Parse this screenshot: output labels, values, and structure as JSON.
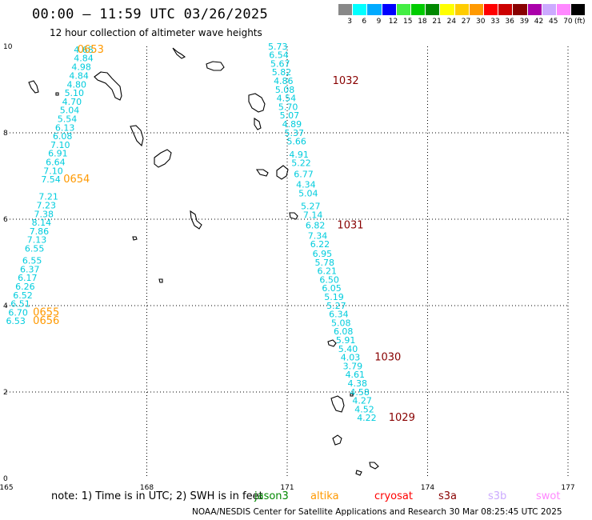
{
  "header": {
    "title": "00:00 – 11:59 UTC 03/26/2025",
    "subtitle": "12 hour collection of altimeter wave heights"
  },
  "legend": {
    "unit": "(ft)",
    "bins": [
      {
        "label": "3",
        "color": "#888888"
      },
      {
        "label": "6",
        "color": "#00ffff"
      },
      {
        "label": "9",
        "color": "#00aaff"
      },
      {
        "label": "12",
        "color": "#0000ff"
      },
      {
        "label": "15",
        "color": "#44ee44"
      },
      {
        "label": "18",
        "color": "#00cc00"
      },
      {
        "label": "21",
        "color": "#008800"
      },
      {
        "label": "24",
        "color": "#ffff00"
      },
      {
        "label": "27",
        "color": "#ffcc00"
      },
      {
        "label": "30",
        "color": "#ff9900"
      },
      {
        "label": "33",
        "color": "#ff0000"
      },
      {
        "label": "36",
        "color": "#cc0000"
      },
      {
        "label": "39",
        "color": "#880000"
      },
      {
        "label": "42",
        "color": "#aa00aa"
      },
      {
        "label": "45",
        "color": "#ccaaff"
      },
      {
        "label": "70",
        "color": "#ff88ff"
      },
      {
        "label": "",
        "color": "#000000"
      }
    ]
  },
  "footer": {
    "note": "note:  1) Time is in UTC;  2) SWH is in feet",
    "credit": "NOAA/NESDIS Center for Satellite Applications and Research    30 Mar 08:25:45 UTC 2025",
    "satellites": [
      {
        "name": "jason3",
        "color": "#008800"
      },
      {
        "name": "altika",
        "color": "#ff9900"
      },
      {
        "name": "cryosat",
        "color": "#ff0000"
      },
      {
        "name": "s3a",
        "color": "#880000"
      },
      {
        "name": "s3b",
        "color": "#ccaaff"
      },
      {
        "name": "swot",
        "color": "#ff88ff"
      }
    ]
  },
  "chart_data": {
    "type": "scatter",
    "xlim": [
      165,
      177
    ],
    "ylim": [
      0,
      10
    ],
    "x_ticks": [
      "165",
      "168",
      "171",
      "174",
      "177"
    ],
    "y_ticks": [
      "0",
      "2",
      "4",
      "6",
      "8",
      "10"
    ],
    "grid": true,
    "colors": {
      "value": "#00ccdd",
      "altika_time": "#ff9900",
      "s3a_time": "#880000"
    },
    "track_west": [
      {
        "lon": 166.65,
        "lat": 9.85,
        "v": "4.68"
      },
      {
        "lon": 166.65,
        "lat": 9.66,
        "v": "4.84"
      },
      {
        "lon": 166.6,
        "lat": 9.45,
        "v": "4.98"
      },
      {
        "lon": 166.55,
        "lat": 9.25,
        "v": "4.84"
      },
      {
        "lon": 166.5,
        "lat": 9.05,
        "v": "4.80"
      },
      {
        "lon": 166.45,
        "lat": 8.85,
        "v": "5.10"
      },
      {
        "lon": 166.4,
        "lat": 8.65,
        "v": "4.70"
      },
      {
        "lon": 166.35,
        "lat": 8.45,
        "v": "5.04"
      },
      {
        "lon": 166.3,
        "lat": 8.25,
        "v": "5.54"
      },
      {
        "lon": 166.25,
        "lat": 8.05,
        "v": "6.13"
      },
      {
        "lon": 166.2,
        "lat": 7.85,
        "v": "6.08"
      },
      {
        "lon": 166.15,
        "lat": 7.65,
        "v": "7.10"
      },
      {
        "lon": 166.1,
        "lat": 7.45,
        "v": "6.91"
      },
      {
        "lon": 166.05,
        "lat": 7.25,
        "v": "6.64"
      },
      {
        "lon": 166.0,
        "lat": 7.05,
        "v": "7.10"
      },
      {
        "lon": 165.95,
        "lat": 6.85,
        "v": "7.54"
      },
      {
        "lon": 165.9,
        "lat": 6.45,
        "v": "7.21"
      },
      {
        "lon": 165.85,
        "lat": 6.25,
        "v": "7.23"
      },
      {
        "lon": 165.8,
        "lat": 6.05,
        "v": "7.38"
      },
      {
        "lon": 165.75,
        "lat": 5.85,
        "v": "8.14"
      },
      {
        "lon": 165.7,
        "lat": 5.65,
        "v": "7.86"
      },
      {
        "lon": 165.65,
        "lat": 5.45,
        "v": "7.13"
      },
      {
        "lon": 165.6,
        "lat": 5.25,
        "v": "6.55"
      },
      {
        "lon": 165.55,
        "lat": 4.97,
        "v": "6.55"
      },
      {
        "lon": 165.5,
        "lat": 4.77,
        "v": "6.37"
      },
      {
        "lon": 165.45,
        "lat": 4.57,
        "v": "6.17"
      },
      {
        "lon": 165.4,
        "lat": 4.37,
        "v": "6.26"
      },
      {
        "lon": 165.35,
        "lat": 4.17,
        "v": "6.52"
      },
      {
        "lon": 165.3,
        "lat": 3.97,
        "v": "6.51"
      },
      {
        "lon": 165.25,
        "lat": 3.77,
        "v": "6.70"
      },
      {
        "lon": 165.2,
        "lat": 3.57,
        "v": "6.53"
      }
    ],
    "track_east": [
      {
        "lon": 170.8,
        "lat": 9.93,
        "v": "5.73"
      },
      {
        "lon": 170.82,
        "lat": 9.73,
        "v": "6.54"
      },
      {
        "lon": 170.85,
        "lat": 9.53,
        "v": "5.67"
      },
      {
        "lon": 170.88,
        "lat": 9.33,
        "v": "5.82"
      },
      {
        "lon": 170.92,
        "lat": 9.13,
        "v": "4.86"
      },
      {
        "lon": 170.95,
        "lat": 8.93,
        "v": "5.08"
      },
      {
        "lon": 170.98,
        "lat": 8.73,
        "v": "4.54"
      },
      {
        "lon": 171.02,
        "lat": 8.53,
        "v": "5.70"
      },
      {
        "lon": 171.05,
        "lat": 8.33,
        "v": "5.07"
      },
      {
        "lon": 171.1,
        "lat": 8.13,
        "v": "4.89"
      },
      {
        "lon": 171.15,
        "lat": 7.93,
        "v": "5.37"
      },
      {
        "lon": 171.2,
        "lat": 7.73,
        "v": "5.66"
      },
      {
        "lon": 171.25,
        "lat": 7.43,
        "v": "4.91"
      },
      {
        "lon": 171.3,
        "lat": 7.23,
        "v": "5.22"
      },
      {
        "lon": 171.35,
        "lat": 6.97,
        "v": "6.77"
      },
      {
        "lon": 171.4,
        "lat": 6.73,
        "v": "4.34"
      },
      {
        "lon": 171.45,
        "lat": 6.53,
        "v": "5.04"
      },
      {
        "lon": 171.5,
        "lat": 6.23,
        "v": "5.27"
      },
      {
        "lon": 171.55,
        "lat": 6.03,
        "v": "7.14"
      },
      {
        "lon": 171.6,
        "lat": 5.79,
        "v": "6.82"
      },
      {
        "lon": 171.65,
        "lat": 5.55,
        "v": "7.34"
      },
      {
        "lon": 171.7,
        "lat": 5.35,
        "v": "6.22"
      },
      {
        "lon": 171.75,
        "lat": 5.13,
        "v": "6.95"
      },
      {
        "lon": 171.8,
        "lat": 4.93,
        "v": "5.78"
      },
      {
        "lon": 171.85,
        "lat": 4.73,
        "v": "6.21"
      },
      {
        "lon": 171.9,
        "lat": 4.53,
        "v": "6.50"
      },
      {
        "lon": 171.95,
        "lat": 4.33,
        "v": "6.05"
      },
      {
        "lon": 172.0,
        "lat": 4.13,
        "v": "5.19"
      },
      {
        "lon": 172.05,
        "lat": 3.93,
        "v": "5.27"
      },
      {
        "lon": 172.1,
        "lat": 3.73,
        "v": "6.34"
      },
      {
        "lon": 172.15,
        "lat": 3.53,
        "v": "5.08"
      },
      {
        "lon": 172.2,
        "lat": 3.33,
        "v": "6.08"
      },
      {
        "lon": 172.25,
        "lat": 3.13,
        "v": "5.91"
      },
      {
        "lon": 172.3,
        "lat": 2.93,
        "v": "5.40"
      },
      {
        "lon": 172.35,
        "lat": 2.73,
        "v": "4.03"
      },
      {
        "lon": 172.4,
        "lat": 2.53,
        "v": "3.79"
      },
      {
        "lon": 172.45,
        "lat": 2.33,
        "v": "4.61"
      },
      {
        "lon": 172.5,
        "lat": 2.13,
        "v": "4.38"
      },
      {
        "lon": 172.55,
        "lat": 1.93,
        "v": "4.58"
      },
      {
        "lon": 172.6,
        "lat": 1.73,
        "v": "4.27"
      },
      {
        "lon": 172.65,
        "lat": 1.53,
        "v": "4.52"
      },
      {
        "lon": 172.7,
        "lat": 1.33,
        "v": "4.22"
      }
    ],
    "time_labels": [
      {
        "lon": 166.8,
        "lat": 9.85,
        "t": "0653",
        "sat": "altika"
      },
      {
        "lon": 166.5,
        "lat": 6.85,
        "t": "0654",
        "sat": "altika"
      },
      {
        "lon": 165.85,
        "lat": 3.77,
        "t": "0655",
        "sat": "altika"
      },
      {
        "lon": 165.85,
        "lat": 3.57,
        "t": "0656",
        "sat": "altika"
      },
      {
        "lon": 172.25,
        "lat": 9.13,
        "t": "1032",
        "sat": "s3a"
      },
      {
        "lon": 172.35,
        "lat": 5.79,
        "t": "1031",
        "sat": "s3a"
      },
      {
        "lon": 173.15,
        "lat": 2.73,
        "t": "1030",
        "sat": "s3a"
      },
      {
        "lon": 173.45,
        "lat": 1.33,
        "t": "1029",
        "sat": "s3a"
      }
    ]
  }
}
